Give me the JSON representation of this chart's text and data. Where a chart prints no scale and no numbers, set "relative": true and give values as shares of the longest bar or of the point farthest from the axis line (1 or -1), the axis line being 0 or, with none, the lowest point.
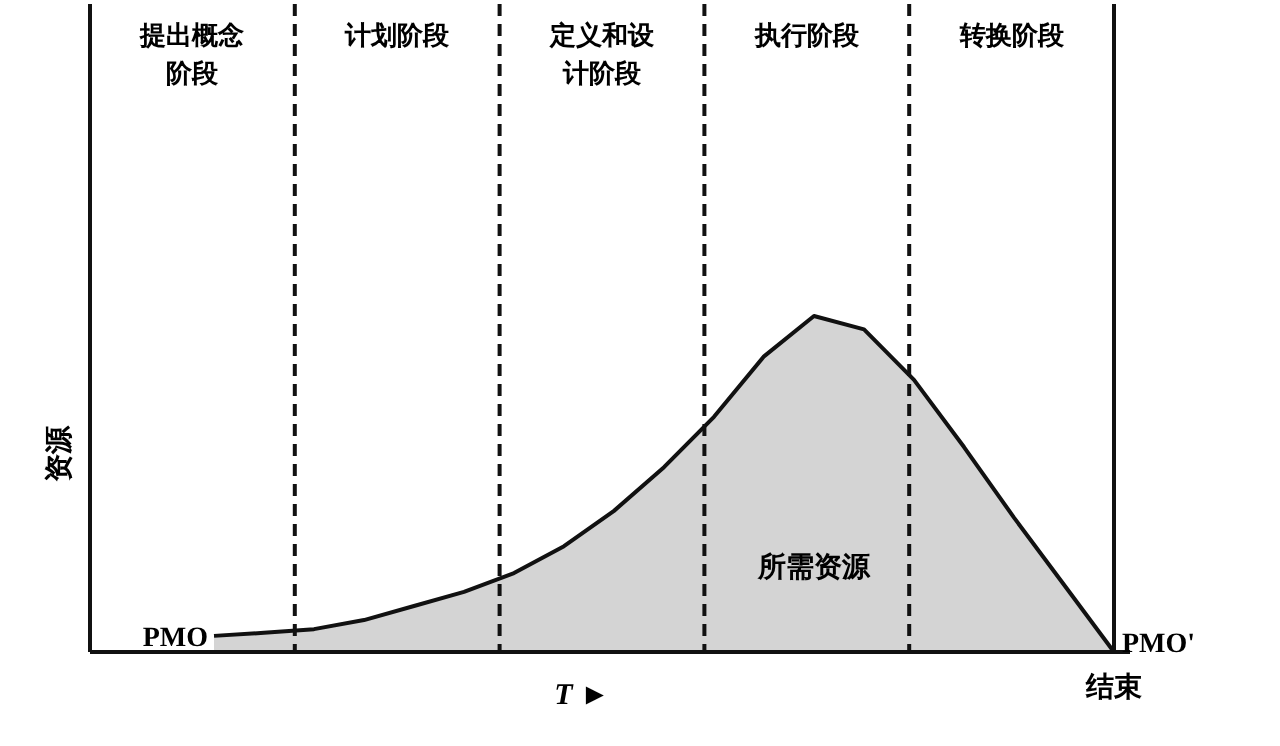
{
  "chart_data": {
    "type": "area",
    "relative": true,
    "color": "#111111",
    "ylabel": "资源",
    "xlabel": "*T* ►",
    "categories": [
      null,
      null,
      null,
      null,
      null,
      null,
      null,
      null,
      null,
      null,
      null,
      null,
      null,
      null,
      null,
      null,
      null,
      null,
      null
    ],
    "values": [
      0.048,
      0.057,
      0.068,
      0.095,
      0.137,
      0.179,
      0.235,
      0.315,
      0.42,
      0.55,
      0.7,
      0.88,
      1,
      0.96,
      0.81,
      0.61,
      0.4,
      0.2,
      0
    ],
    "annotations": [
      "PMO",
      "PMO'",
      "所需资源",
      "结束",
      "提出概念阶段",
      "计划阶段",
      "定义和设计阶段",
      "执行阶段",
      "转换阶段"
    ]
  }
}
